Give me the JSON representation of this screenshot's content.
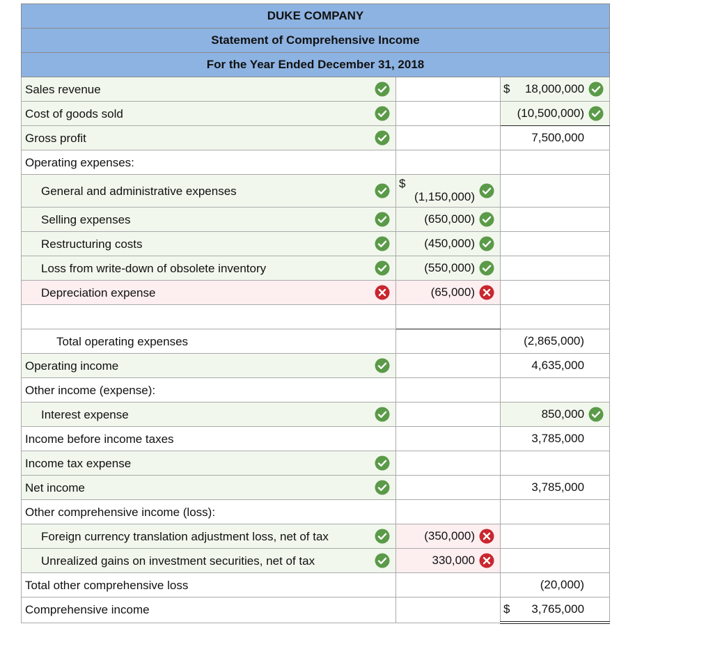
{
  "header": {
    "company": "DUKE COMPANY",
    "title": "Statement of Comprehensive Income",
    "period": "For the Year Ended December 31, 2018"
  },
  "rows": [
    {
      "label": "Sales revenue",
      "level": 0,
      "label_status": "correct",
      "right_currency": "$",
      "right": "18,000,000",
      "right_status": "correct"
    },
    {
      "label": "Cost of goods sold",
      "level": 0,
      "label_status": "correct",
      "right": "(10,500,000)",
      "right_status": "correct",
      "right_rule": "single"
    },
    {
      "label": "Gross profit",
      "level": 0,
      "label_status": "correct",
      "right": "7,500,000"
    },
    {
      "label": "Operating expenses:",
      "level": 0
    },
    {
      "label": "General and administrative expenses",
      "level": 1,
      "label_status": "correct",
      "mid_currency": "$",
      "mid": "(1,150,000)",
      "mid_status": "correct"
    },
    {
      "label": "Selling expenses",
      "level": 1,
      "label_status": "correct",
      "mid": "(650,000)",
      "mid_status": "correct"
    },
    {
      "label": "Restructuring costs",
      "level": 1,
      "label_status": "correct",
      "mid": "(450,000)",
      "mid_status": "correct"
    },
    {
      "label": "Loss from write-down of obsolete inventory",
      "level": 1,
      "label_status": "correct",
      "mid": "(550,000)",
      "mid_status": "correct"
    },
    {
      "label": "Depreciation expense",
      "level": 1,
      "label_status": "incorrect",
      "mid": "(65,000)",
      "mid_status": "incorrect"
    },
    {
      "level": 0,
      "mid_rule": "single"
    },
    {
      "label": "Total operating expenses",
      "level": 2,
      "right": "(2,865,000)"
    },
    {
      "label": "Operating income",
      "level": 0,
      "label_status": "correct",
      "right": "4,635,000"
    },
    {
      "label": "Other income (expense):",
      "level": 0
    },
    {
      "label": "Interest expense",
      "level": 1,
      "label_status": "correct",
      "right": "850,000",
      "right_status": "correct"
    },
    {
      "label": "Income before income taxes",
      "level": 0,
      "right": "3,785,000"
    },
    {
      "label": "Income tax expense",
      "level": 0,
      "label_status": "correct"
    },
    {
      "label": "Net income",
      "level": 0,
      "label_status": "correct",
      "right": "3,785,000"
    },
    {
      "label": "Other comprehensive income (loss):",
      "level": 0
    },
    {
      "label": "Foreign currency translation adjustment loss, net of tax",
      "level": 1,
      "hanging": true,
      "label_status": "correct",
      "mid": "(350,000)",
      "mid_status": "incorrect"
    },
    {
      "label": "Unrealized gains on investment securities, net of tax",
      "level": 1,
      "label_status": "correct",
      "mid": "330,000",
      "mid_status": "incorrect"
    },
    {
      "label": "Total other comprehensive loss",
      "level": 0,
      "right": "(20,000)"
    },
    {
      "label": "Comprehensive income",
      "level": 0,
      "right_currency": "$",
      "right": "3,765,000",
      "right_rule": "double"
    }
  ]
}
